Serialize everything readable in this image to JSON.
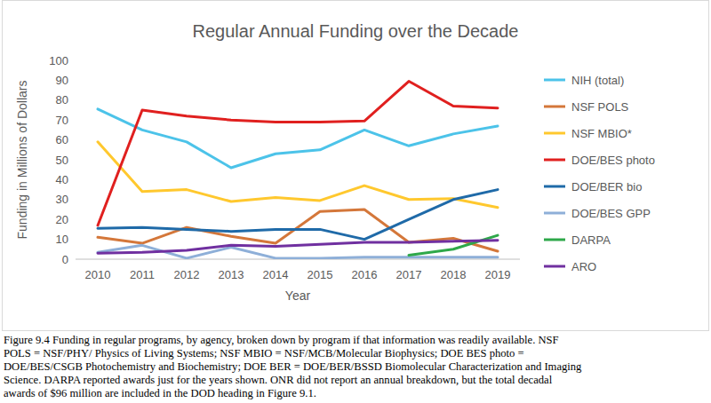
{
  "chart_data": {
    "type": "line",
    "title": "Regular Annual Funding over the Decade",
    "x_label": "Year",
    "y_label": "Funding in Millions of Dollars",
    "categories": [
      "2010",
      "2011",
      "2012",
      "2013",
      "2014",
      "2015",
      "2016",
      "2017",
      "2018",
      "2019"
    ],
    "ylim": [
      0,
      100
    ],
    "yticks": [
      0,
      10,
      20,
      30,
      40,
      50,
      60,
      70,
      80,
      90,
      100
    ],
    "grid": false,
    "legend": "right",
    "series": [
      {
        "name": "NIH (total)",
        "color": "#4cc3e9",
        "values": [
          75.5,
          65,
          59,
          46,
          53,
          55,
          65,
          57,
          63,
          67
        ]
      },
      {
        "name": "NSF POLS",
        "color": "#d4773a",
        "values": [
          11,
          8,
          16,
          11.5,
          8,
          24,
          25,
          8.5,
          10.5,
          4
        ]
      },
      {
        "name": "NSF MBIO*",
        "color": "#ffc82e",
        "values": [
          59,
          34,
          35,
          29,
          31,
          29.5,
          37,
          30,
          30.5,
          26
        ]
      },
      {
        "name": "DOE/BES photo",
        "color": "#e0201f",
        "values": [
          17,
          75,
          72,
          70,
          69,
          69,
          69.5,
          89.5,
          77,
          76
        ]
      },
      {
        "name": "DOE/BER bio",
        "color": "#1f6aa8",
        "values": [
          15.5,
          16,
          15,
          14,
          15,
          15,
          10,
          20,
          30,
          35
        ]
      },
      {
        "name": "DOE/BES GPP",
        "color": "#8eafd8",
        "values": [
          3.5,
          7,
          0.5,
          6,
          0.5,
          0.5,
          1,
          1,
          1,
          1
        ]
      },
      {
        "name": "DARPA",
        "color": "#2ea84a",
        "values": [
          null,
          null,
          null,
          null,
          null,
          null,
          null,
          2,
          5,
          12
        ]
      },
      {
        "name": "ARO",
        "color": "#7030a0",
        "values": [
          3,
          3.5,
          4.5,
          7,
          6.5,
          7.5,
          8.5,
          8.5,
          9,
          9.5
        ]
      }
    ],
    "caption": [
      "Figure 9.4 Funding in regular programs, by agency, broken down by program if that information was readily available. NSF",
      "POLS = NSF/PHY/ Physics of Living Systems; NSF MBIO = NSF/MCB/Molecular Biophysics; DOE BES photo =",
      "DOE/BES/CSGB Photochemistry and Biochemistry; DOE BER = DOE/BER/BSSD Biomolecular Characterization and Imaging",
      "Science. DARPA reported awards just for the years shown. ONR did not report an annual breakdown, but the total decadal",
      "awards of $96 million are included in the DOD heading in Figure 9.1."
    ]
  }
}
